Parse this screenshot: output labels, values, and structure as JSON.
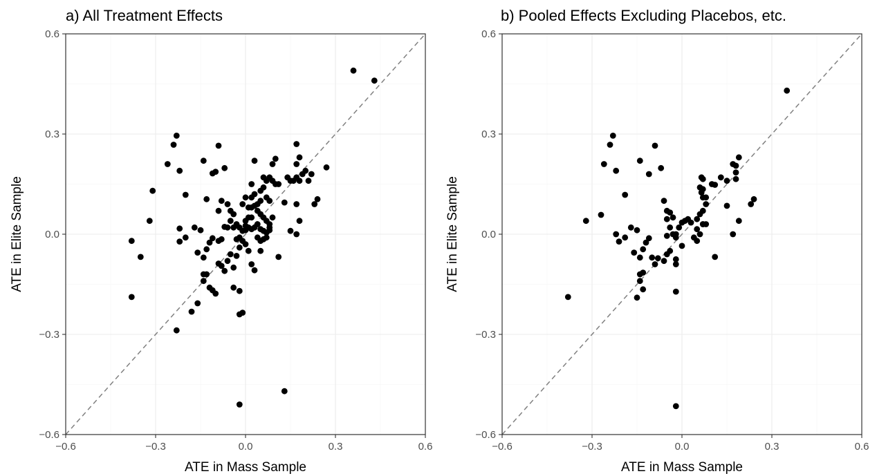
{
  "colors": {
    "point": "#000000",
    "reference_line": "#808080",
    "grid": "#ebebeb",
    "frame": "#333333",
    "background": "#ffffff"
  },
  "chart_data": [
    {
      "type": "scatter",
      "title": "a) All Treatment Effects",
      "xlabel": "ATE in Mass Sample",
      "ylabel": "ATE in Elite Sample",
      "xlim": [
        -0.6,
        0.6
      ],
      "ylim": [
        -0.6,
        0.6
      ],
      "xticks": [
        -0.6,
        -0.3,
        0.0,
        0.3,
        0.6
      ],
      "yticks": [
        -0.6,
        -0.3,
        0.0,
        0.3,
        0.6
      ],
      "xtick_labels": [
        "−0.6",
        "−0.3",
        "0.0",
        "0.3",
        "0.6"
      ],
      "ytick_labels": [
        "−0.6",
        "−0.3",
        "0.0",
        "0.3",
        "0.6"
      ],
      "grid": true,
      "reference_line": "y = x (dashed)",
      "points": [
        [
          0.36,
          0.49
        ],
        [
          0.43,
          0.46
        ],
        [
          -0.23,
          0.295
        ],
        [
          -0.24,
          0.268
        ],
        [
          -0.26,
          0.21
        ],
        [
          -0.22,
          0.19
        ],
        [
          -0.09,
          0.265
        ],
        [
          -0.14,
          0.22
        ],
        [
          -0.07,
          0.198
        ],
        [
          -0.1,
          0.187
        ],
        [
          -0.11,
          0.182
        ],
        [
          -0.2,
          0.118
        ],
        [
          -0.13,
          0.105
        ],
        [
          -0.31,
          0.13
        ],
        [
          -0.32,
          0.04
        ],
        [
          -0.22,
          0.017
        ],
        [
          -0.38,
          -0.02
        ],
        [
          -0.35,
          -0.068
        ],
        [
          -0.38,
          -0.188
        ],
        [
          -0.23,
          -0.288
        ],
        [
          -0.2,
          -0.01
        ],
        [
          -0.22,
          -0.022
        ],
        [
          -0.17,
          0.02
        ],
        [
          -0.15,
          0.012
        ],
        [
          -0.16,
          -0.055
        ],
        [
          -0.14,
          -0.07
        ],
        [
          -0.13,
          -0.045
        ],
        [
          -0.12,
          -0.025
        ],
        [
          -0.11,
          -0.012
        ],
        [
          -0.14,
          -0.12
        ],
        [
          -0.13,
          -0.12
        ],
        [
          -0.14,
          -0.14
        ],
        [
          -0.12,
          -0.16
        ],
        [
          -0.11,
          -0.168
        ],
        [
          -0.16,
          -0.207
        ],
        [
          -0.18,
          -0.232
        ],
        [
          -0.1,
          -0.178
        ],
        [
          -0.09,
          -0.088
        ],
        [
          -0.08,
          -0.095
        ],
        [
          -0.07,
          -0.11
        ],
        [
          -0.06,
          -0.08
        ],
        [
          -0.05,
          -0.06
        ],
        [
          -0.04,
          -0.1
        ],
        [
          -0.03,
          -0.065
        ],
        [
          -0.04,
          -0.16
        ],
        [
          -0.02,
          -0.17
        ],
        [
          -0.01,
          -0.235
        ],
        [
          -0.02,
          -0.24
        ],
        [
          -0.02,
          -0.51
        ],
        [
          0.13,
          -0.47
        ],
        [
          0.11,
          -0.068
        ],
        [
          0.05,
          -0.05
        ],
        [
          0.02,
          -0.09
        ],
        [
          0.03,
          -0.108
        ],
        [
          -0.09,
          0.07
        ],
        [
          -0.08,
          0.1
        ],
        [
          -0.06,
          0.09
        ],
        [
          -0.05,
          0.07
        ],
        [
          -0.04,
          0.06
        ],
        [
          -0.05,
          0.04
        ],
        [
          -0.06,
          0.02
        ],
        [
          -0.07,
          0.022
        ],
        [
          -0.08,
          -0.015
        ],
        [
          -0.09,
          -0.02
        ],
        [
          -0.04,
          0.02
        ],
        [
          -0.03,
          0.03
        ],
        [
          -0.02,
          0.02
        ],
        [
          -0.01,
          0.01
        ],
        [
          0.0,
          0.012
        ],
        [
          0.01,
          0.02
        ],
        [
          0.02,
          0.015
        ],
        [
          -0.02,
          -0.01
        ],
        [
          -0.01,
          -0.02
        ],
        [
          0.0,
          -0.03
        ],
        [
          0.01,
          -0.05
        ],
        [
          -0.03,
          -0.015
        ],
        [
          -0.02,
          -0.04
        ],
        [
          0.0,
          0.025
        ],
        [
          0.01,
          0.05
        ],
        [
          0.02,
          0.08
        ],
        [
          0.03,
          0.085
        ],
        [
          0.04,
          0.07
        ],
        [
          0.05,
          0.06
        ],
        [
          0.06,
          0.05
        ],
        [
          0.07,
          0.04
        ],
        [
          0.08,
          0.03
        ],
        [
          0.04,
          0.03
        ],
        [
          0.03,
          0.02
        ],
        [
          0.05,
          0.015
        ],
        [
          0.06,
          0.01
        ],
        [
          0.07,
          0.005
        ],
        [
          0.08,
          0.012
        ],
        [
          0.04,
          -0.01
        ],
        [
          0.05,
          -0.02
        ],
        [
          0.06,
          -0.015
        ],
        [
          0.07,
          -0.01
        ],
        [
          0.08,
          0.02
        ],
        [
          0.09,
          0.05
        ],
        [
          0.02,
          0.11
        ],
        [
          0.03,
          0.12
        ],
        [
          0.05,
          0.13
        ],
        [
          0.06,
          0.14
        ],
        [
          0.07,
          0.16
        ],
        [
          0.08,
          0.17
        ],
        [
          0.09,
          0.16
        ],
        [
          0.1,
          0.15
        ],
        [
          0.06,
          0.17
        ],
        [
          0.07,
          0.11
        ],
        [
          0.08,
          0.1
        ],
        [
          0.04,
          0.09
        ],
        [
          0.05,
          0.1
        ],
        [
          0.03,
          0.22
        ],
        [
          0.1,
          0.226
        ],
        [
          0.09,
          0.21
        ],
        [
          0.11,
          0.15
        ],
        [
          0.13,
          0.095
        ],
        [
          0.15,
          0.16
        ],
        [
          0.16,
          0.16
        ],
        [
          0.17,
          0.17
        ],
        [
          0.18,
          0.16
        ],
        [
          0.19,
          0.18
        ],
        [
          0.2,
          0.19
        ],
        [
          0.21,
          0.16
        ],
        [
          0.22,
          0.18
        ],
        [
          0.18,
          0.23
        ],
        [
          0.17,
          0.21
        ],
        [
          0.17,
          0.27
        ],
        [
          0.27,
          0.2
        ],
        [
          0.24,
          0.105
        ],
        [
          0.23,
          0.09
        ],
        [
          0.17,
          0.09
        ],
        [
          0.18,
          0.04
        ],
        [
          0.15,
          0.01
        ],
        [
          0.17,
          0.0
        ],
        [
          0.14,
          0.17
        ],
        [
          0.02,
          0.15
        ],
        [
          0.0,
          0.11
        ],
        [
          -0.01,
          0.09
        ],
        [
          0.01,
          0.08
        ],
        [
          0.02,
          0.05
        ],
        [
          0.0,
          0.04
        ]
      ]
    },
    {
      "type": "scatter",
      "title": "b) Pooled Effects Excluding Placebos, etc.",
      "xlabel": "ATE in Mass Sample",
      "ylabel": "ATE in Elite Sample",
      "xlim": [
        -0.6,
        0.6
      ],
      "ylim": [
        -0.6,
        0.6
      ],
      "xticks": [
        -0.6,
        -0.3,
        0.0,
        0.3,
        0.6
      ],
      "yticks": [
        -0.6,
        -0.3,
        0.0,
        0.3,
        0.6
      ],
      "xtick_labels": [
        "−0.6",
        "−0.3",
        "0.0",
        "0.3",
        "0.6"
      ],
      "ytick_labels": [
        "−0.6",
        "−0.3",
        "0.0",
        "0.3",
        "0.6"
      ],
      "grid": true,
      "reference_line": "y = x (dashed)",
      "points": [
        [
          0.35,
          0.43
        ],
        [
          -0.23,
          0.295
        ],
        [
          -0.24,
          0.268
        ],
        [
          -0.26,
          0.21
        ],
        [
          -0.22,
          0.19
        ],
        [
          -0.09,
          0.265
        ],
        [
          -0.14,
          0.22
        ],
        [
          -0.07,
          0.198
        ],
        [
          -0.11,
          0.18
        ],
        [
          -0.19,
          0.118
        ],
        [
          -0.27,
          0.058
        ],
        [
          -0.32,
          0.04
        ],
        [
          -0.38,
          -0.188
        ],
        [
          -0.22,
          0.0
        ],
        [
          -0.21,
          -0.022
        ],
        [
          -0.19,
          -0.01
        ],
        [
          -0.17,
          0.02
        ],
        [
          -0.15,
          0.012
        ],
        [
          -0.16,
          -0.055
        ],
        [
          -0.14,
          -0.07
        ],
        [
          -0.13,
          -0.045
        ],
        [
          -0.12,
          -0.025
        ],
        [
          -0.11,
          -0.012
        ],
        [
          -0.14,
          -0.12
        ],
        [
          -0.13,
          -0.115
        ],
        [
          -0.14,
          -0.14
        ],
        [
          -0.13,
          -0.165
        ],
        [
          -0.15,
          -0.19
        ],
        [
          -0.1,
          -0.07
        ],
        [
          -0.09,
          -0.09
        ],
        [
          -0.08,
          -0.072
        ],
        [
          -0.06,
          -0.08
        ],
        [
          -0.05,
          -0.06
        ],
        [
          -0.04,
          -0.05
        ],
        [
          -0.02,
          -0.075
        ],
        [
          -0.02,
          -0.09
        ],
        [
          -0.02,
          -0.172
        ],
        [
          -0.02,
          -0.515
        ],
        [
          0.11,
          -0.068
        ],
        [
          -0.06,
          0.1
        ],
        [
          -0.05,
          0.07
        ],
        [
          -0.04,
          0.065
        ],
        [
          -0.03,
          0.05
        ],
        [
          -0.05,
          0.045
        ],
        [
          -0.04,
          0.02
        ],
        [
          -0.03,
          0.0
        ],
        [
          -0.05,
          -0.005
        ],
        [
          -0.02,
          -0.01
        ],
        [
          -0.01,
          0.02
        ],
        [
          0.0,
          0.035
        ],
        [
          0.01,
          0.04
        ],
        [
          0.02,
          0.045
        ],
        [
          0.03,
          0.035
        ],
        [
          0.0,
          -0.035
        ],
        [
          -0.02,
          0.0
        ],
        [
          0.04,
          -0.01
        ],
        [
          0.05,
          -0.02
        ],
        [
          0.06,
          0.0
        ],
        [
          0.07,
          0.03
        ],
        [
          0.08,
          0.03
        ],
        [
          0.05,
          0.045
        ],
        [
          0.06,
          0.06
        ],
        [
          0.07,
          0.07
        ],
        [
          0.08,
          0.09
        ],
        [
          0.07,
          0.11
        ],
        [
          0.08,
          0.11
        ],
        [
          0.06,
          0.14
        ],
        [
          0.07,
          0.135
        ],
        [
          0.065,
          0.125
        ],
        [
          0.07,
          0.165
        ],
        [
          0.065,
          0.17
        ],
        [
          0.07,
          0.03
        ],
        [
          0.05,
          0.015
        ],
        [
          0.1,
          0.15
        ],
        [
          0.11,
          0.148
        ],
        [
          0.13,
          0.17
        ],
        [
          0.15,
          0.16
        ],
        [
          0.17,
          0.21
        ],
        [
          0.18,
          0.205
        ],
        [
          0.19,
          0.23
        ],
        [
          0.18,
          0.185
        ],
        [
          0.18,
          0.165
        ],
        [
          0.24,
          0.105
        ],
        [
          0.23,
          0.09
        ],
        [
          0.19,
          0.04
        ],
        [
          0.15,
          0.085
        ],
        [
          0.17,
          0.0
        ]
      ]
    }
  ]
}
